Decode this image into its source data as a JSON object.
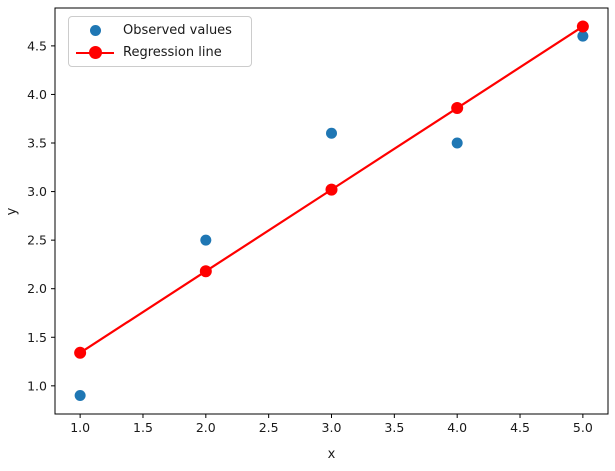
{
  "figure": {
    "background": "#ffffff",
    "text_color": "#1a1a1a",
    "spine_color": "#000000"
  },
  "legend": {
    "position": "upper left",
    "items": [
      {
        "label": "Observed values",
        "marker": "dot",
        "color": "#1f77b4"
      },
      {
        "label": "Regression line",
        "marker": "line-dot",
        "color": "#ff0000"
      }
    ]
  },
  "chart_data": {
    "type": "scatter",
    "title": "",
    "xlabel": "x",
    "ylabel": "y",
    "xlim": [
      0.8,
      5.2
    ],
    "ylim": [
      0.71,
      4.89
    ],
    "x_ticks": [
      1.0,
      1.5,
      2.0,
      2.5,
      3.0,
      3.5,
      4.0,
      4.5,
      5.0
    ],
    "y_ticks": [
      1.0,
      1.5,
      2.0,
      2.5,
      3.0,
      3.5,
      4.0,
      4.5
    ],
    "grid": false,
    "legend_position": "upper left",
    "series": [
      {
        "name": "Observed values",
        "type": "scatter",
        "color": "#1f77b4",
        "marker_radius": 5.5,
        "x": [
          1,
          2,
          3,
          4,
          5
        ],
        "y": [
          0.9,
          2.5,
          3.6,
          3.5,
          4.6
        ]
      },
      {
        "name": "Regression line",
        "type": "line",
        "color": "#ff0000",
        "marker_radius": 6,
        "line_width": 2.2,
        "x": [
          1,
          2,
          3,
          4,
          5
        ],
        "y": [
          1.34,
          2.18,
          3.02,
          3.86,
          4.7
        ]
      }
    ]
  }
}
